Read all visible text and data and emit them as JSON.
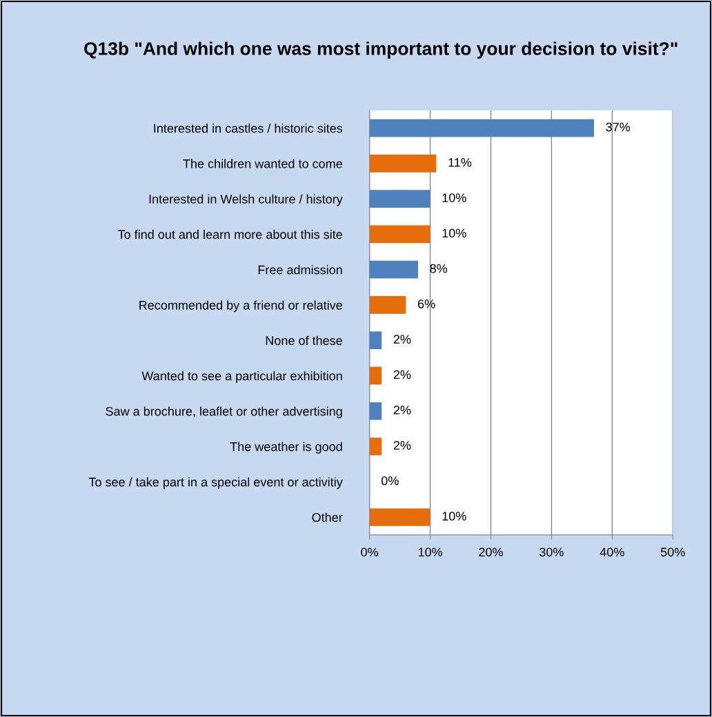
{
  "chart_data": {
    "type": "bar",
    "orientation": "horizontal",
    "title": "Q13b \"And which one was most important to your decision to visit?\"",
    "categories": [
      "Interested in castles / historic sites",
      "The children wanted to come",
      "Interested in Welsh culture / history",
      "To find out and learn more about this site",
      "Free admission",
      "Recommended by a friend or relative",
      "None of these",
      "Wanted to see a particular exhibition",
      "Saw a brochure, leaflet or other advertising",
      "The weather is good",
      "To see / take part in a special event or activitiy",
      "Other"
    ],
    "values": [
      37,
      11,
      10,
      10,
      8,
      6,
      2,
      2,
      2,
      2,
      0,
      10
    ],
    "value_labels": [
      "37%",
      "11%",
      "10%",
      "10%",
      "8%",
      "6%",
      "2%",
      "2%",
      "2%",
      "2%",
      "0%",
      "10%"
    ],
    "colors": [
      "#4f81bd",
      "#e46c0a",
      "#4f81bd",
      "#e46c0a",
      "#4f81bd",
      "#e46c0a",
      "#4f81bd",
      "#e46c0a",
      "#4f81bd",
      "#e46c0a",
      "#4f81bd",
      "#e46c0a"
    ],
    "xlim": [
      0,
      50
    ],
    "xticks": [
      {
        "value": 0,
        "label": "0%"
      },
      {
        "value": 10,
        "label": "10%"
      },
      {
        "value": 20,
        "label": "20%"
      },
      {
        "value": 30,
        "label": "30%"
      },
      {
        "value": 40,
        "label": "40%"
      },
      {
        "value": 50,
        "label": "50%"
      }
    ],
    "grid": "x"
  }
}
